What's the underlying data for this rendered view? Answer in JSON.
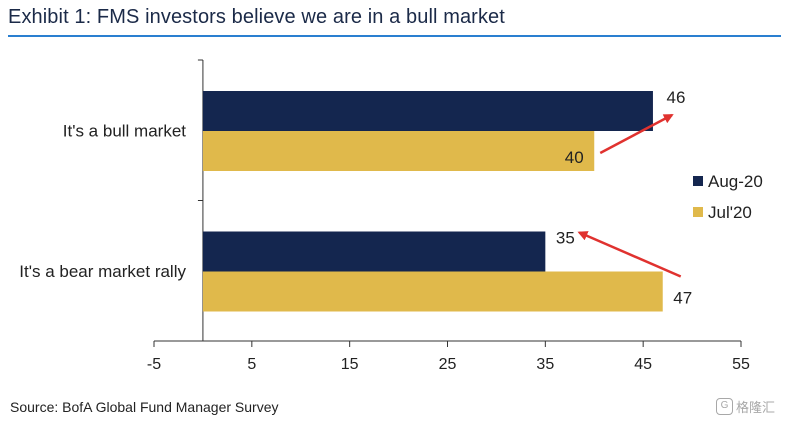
{
  "title": "Exhibit 1: FMS investors believe we are in a bull market",
  "source": "Source: BofA Global Fund Manager Survey",
  "watermark": "格隆汇",
  "chart_data": {
    "type": "bar",
    "orientation": "horizontal",
    "categories": [
      "It's a bull market",
      "It's a bear market rally"
    ],
    "series": [
      {
        "name": "Aug-20",
        "values": [
          46,
          35
        ],
        "color": "#14264f"
      },
      {
        "name": "Jul'20",
        "values": [
          40,
          47
        ],
        "color": "#e0b94b"
      }
    ],
    "xlim": [
      -5,
      55
    ],
    "xticks": [
      -5,
      5,
      15,
      25,
      35,
      45,
      55
    ],
    "legend_position": "right",
    "annotations": [
      {
        "type": "arrow",
        "from": "Jul'20 value for It's a bull market",
        "to": "Aug-20 value for It's a bull market",
        "color": "#e0322f"
      },
      {
        "type": "arrow",
        "from": "Jul'20 value for It's a bear market rally",
        "to": "Aug-20 value for It's a bear market rally",
        "color": "#e0322f"
      }
    ]
  }
}
